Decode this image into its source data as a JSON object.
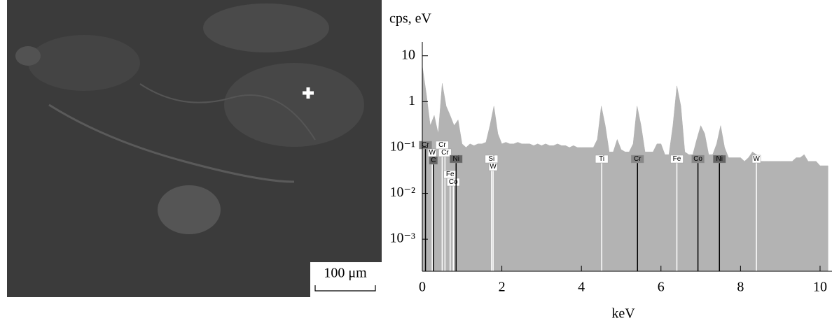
{
  "image": {
    "scale_bar": "100 μm"
  },
  "chart_data": {
    "type": "area",
    "y_label": "cps, eV",
    "x_label": "keV",
    "log_y": true,
    "xlim": [
      0,
      10.3
    ],
    "xticks": [
      0,
      2,
      4,
      6,
      8,
      10
    ],
    "ylim": [
      0.0002,
      20
    ],
    "yticks": [
      10,
      1,
      {
        "value": 0.1,
        "label": "10⁻¹"
      },
      {
        "value": 0.01,
        "label": "10⁻²"
      },
      {
        "value": 0.001,
        "label": "10⁻³"
      }
    ],
    "color": "#b3b3b3",
    "x": [
      0.0,
      0.1,
      0.2,
      0.3,
      0.4,
      0.5,
      0.6,
      0.7,
      0.8,
      0.9,
      1.0,
      1.1,
      1.2,
      1.3,
      1.4,
      1.5,
      1.6,
      1.7,
      1.8,
      1.9,
      2.0,
      2.1,
      2.2,
      2.3,
      2.4,
      2.5,
      2.6,
      2.7,
      2.8,
      2.9,
      3.0,
      3.1,
      3.2,
      3.3,
      3.4,
      3.5,
      3.6,
      3.7,
      3.8,
      3.9,
      4.0,
      4.1,
      4.2,
      4.3,
      4.4,
      4.5,
      4.6,
      4.7,
      4.8,
      4.9,
      5.0,
      5.1,
      5.2,
      5.3,
      5.4,
      5.5,
      5.6,
      5.7,
      5.8,
      5.9,
      6.0,
      6.1,
      6.2,
      6.3,
      6.4,
      6.5,
      6.6,
      6.7,
      6.8,
      6.9,
      7.0,
      7.1,
      7.2,
      7.3,
      7.4,
      7.5,
      7.6,
      7.7,
      7.8,
      7.9,
      8.0,
      8.1,
      8.2,
      8.3,
      8.4,
      8.5,
      8.6,
      8.7,
      8.8,
      8.9,
      9.0,
      9.1,
      9.2,
      9.3,
      9.4,
      9.5,
      9.6,
      9.7,
      9.8,
      9.9,
      10.0,
      10.1,
      10.2
    ],
    "values": [
      6,
      1.5,
      0.3,
      0.5,
      0.2,
      2.5,
      0.8,
      0.5,
      0.3,
      0.4,
      0.12,
      0.1,
      0.12,
      0.11,
      0.12,
      0.12,
      0.13,
      0.3,
      0.8,
      0.2,
      0.12,
      0.13,
      0.12,
      0.12,
      0.13,
      0.12,
      0.12,
      0.12,
      0.11,
      0.12,
      0.11,
      0.12,
      0.11,
      0.11,
      0.12,
      0.11,
      0.11,
      0.1,
      0.11,
      0.1,
      0.1,
      0.1,
      0.1,
      0.1,
      0.15,
      0.8,
      0.3,
      0.08,
      0.08,
      0.15,
      0.09,
      0.08,
      0.08,
      0.12,
      0.8,
      0.3,
      0.08,
      0.08,
      0.08,
      0.12,
      0.12,
      0.07,
      0.07,
      0.3,
      2.2,
      0.8,
      0.08,
      0.07,
      0.07,
      0.15,
      0.3,
      0.2,
      0.07,
      0.07,
      0.12,
      0.3,
      0.1,
      0.06,
      0.06,
      0.06,
      0.06,
      0.05,
      0.06,
      0.08,
      0.07,
      0.05,
      0.05,
      0.05,
      0.05,
      0.05,
      0.05,
      0.05,
      0.05,
      0.05,
      0.06,
      0.06,
      0.07,
      0.05,
      0.05,
      0.05,
      0.04,
      0.04,
      0.04
    ],
    "markers": [
      {
        "label": "Cr",
        "x": 0.08,
        "color": "#888888"
      },
      {
        "label": "W",
        "x": 0.25,
        "color": "#ffffff"
      },
      {
        "label": "C",
        "x": 0.28,
        "color": "#666666"
      },
      {
        "label": "Cr",
        "x": 0.5,
        "color": "#ffffff"
      },
      {
        "label": "Cr",
        "x": 0.57,
        "color": "#ffffff"
      },
      {
        "label": "Fe",
        "x": 0.7,
        "color": "#ffffff"
      },
      {
        "label": "Co",
        "x": 0.78,
        "color": "#ffffff"
      },
      {
        "label": "Ni",
        "x": 0.85,
        "color": "#666666"
      },
      {
        "label": "Si",
        "x": 1.74,
        "color": "#ffffff"
      },
      {
        "label": "W",
        "x": 1.78,
        "color": "#ffffff"
      },
      {
        "label": "Ti",
        "x": 4.51,
        "color": "#ffffff"
      },
      {
        "label": "Cr",
        "x": 5.41,
        "color": "#888888"
      },
      {
        "label": "Fe",
        "x": 6.4,
        "color": "#ffffff"
      },
      {
        "label": "Co",
        "x": 6.93,
        "color": "#888888"
      },
      {
        "label": "Ni",
        "x": 7.47,
        "color": "#666666"
      },
      {
        "label": "W",
        "x": 8.4,
        "color": "#ffffff"
      }
    ]
  }
}
